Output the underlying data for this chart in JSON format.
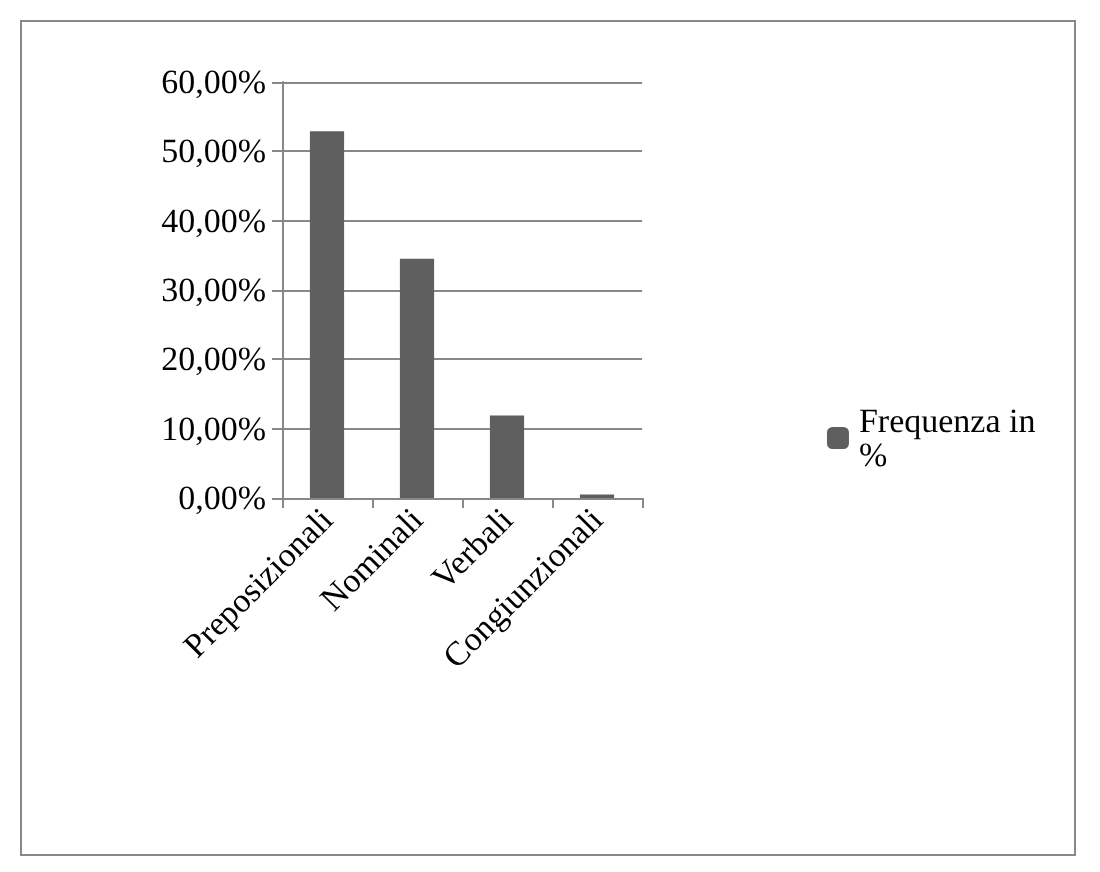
{
  "chart_data": {
    "type": "bar",
    "categories": [
      "Preposizionali",
      "Nominali",
      "Verbali",
      "Congiunzionali"
    ],
    "series": [
      {
        "name": "Frequenza in %",
        "color": "#5f5f5f",
        "values": [
          52.9,
          34.5,
          11.9,
          0.5
        ]
      }
    ],
    "ylim": [
      0,
      60
    ],
    "yticks": [
      {
        "value": 0,
        "label": "0,00%"
      },
      {
        "value": 10,
        "label": "10,00%"
      },
      {
        "value": 20,
        "label": "20,00%"
      },
      {
        "value": 30,
        "label": "30,00%"
      },
      {
        "value": 40,
        "label": "40,00%"
      },
      {
        "value": 50,
        "label": "50,00%"
      },
      {
        "value": 60,
        "label": "60,00%"
      }
    ],
    "grid": "y",
    "legend": "right"
  }
}
